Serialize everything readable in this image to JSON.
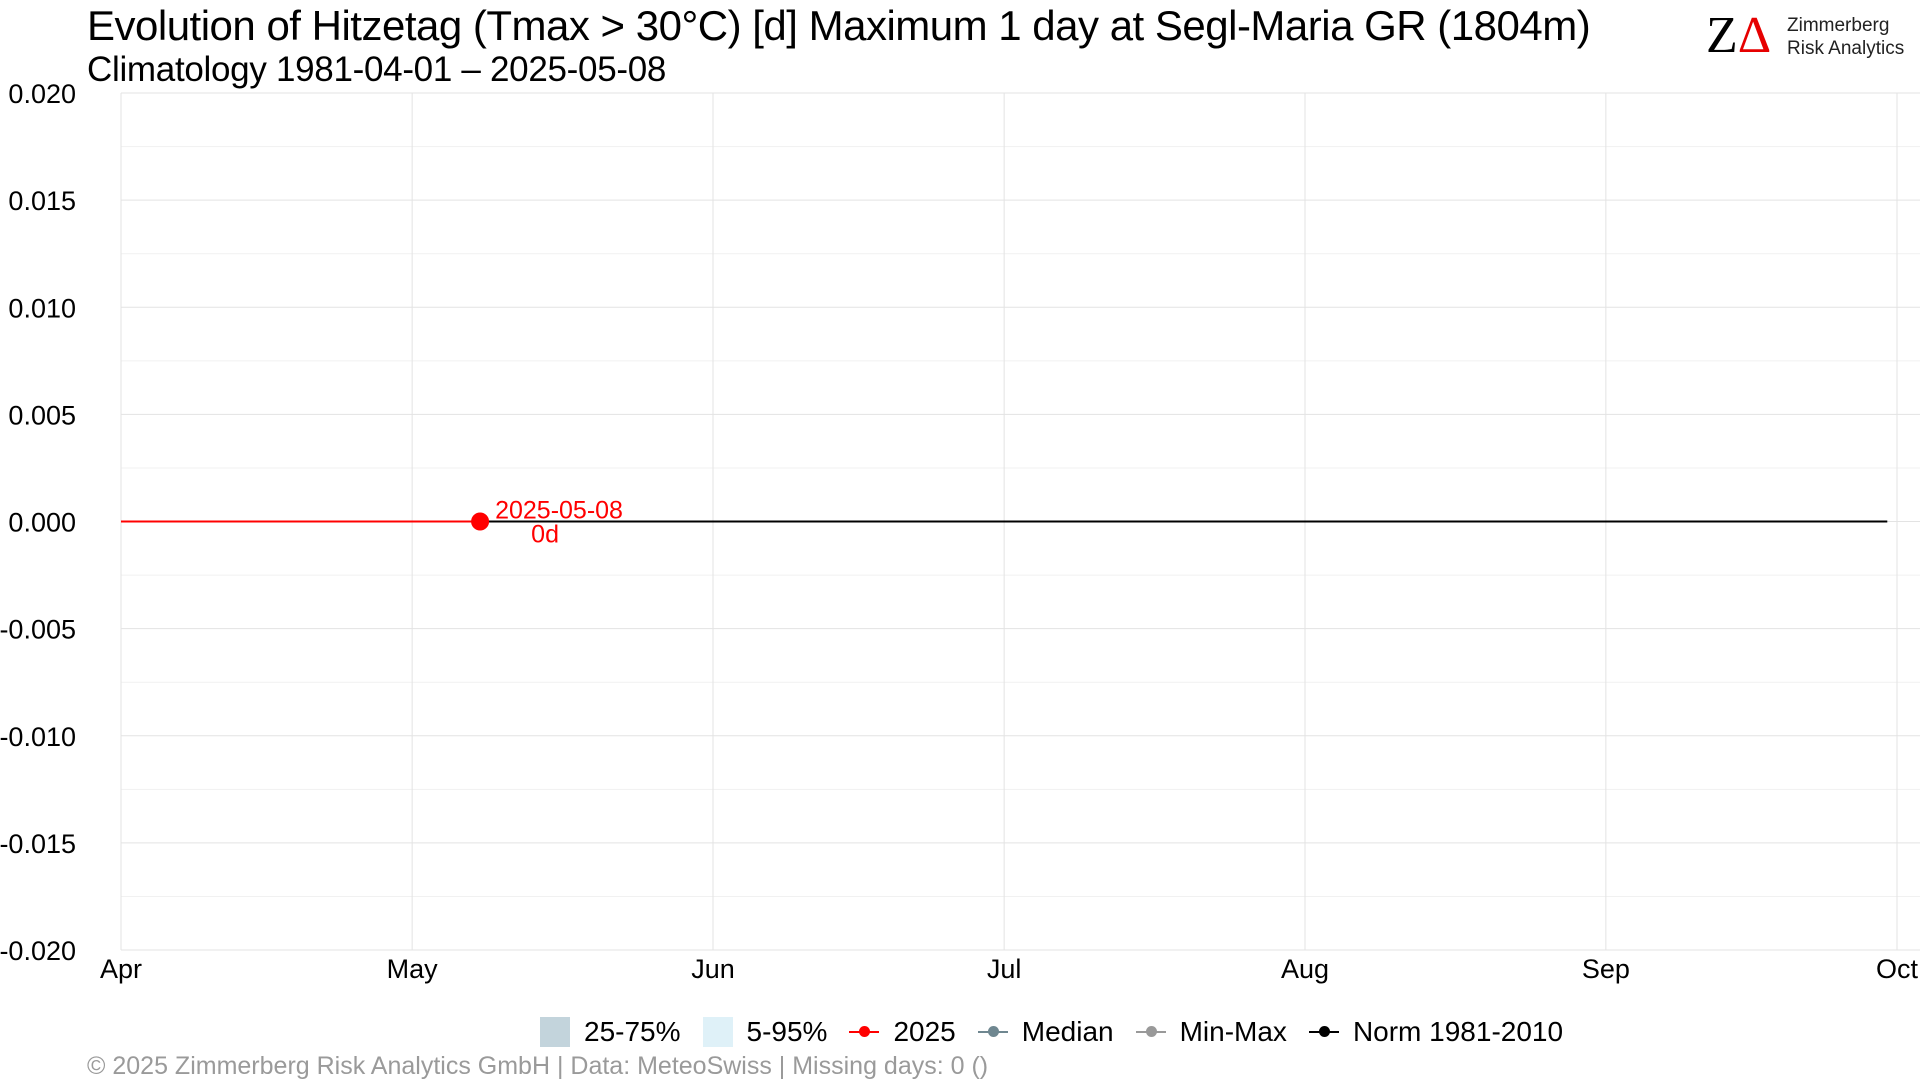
{
  "header": {
    "title": "Evolution of Hitzetag (Tmax > 30°C) [d] Maximum 1 day at Segl-Maria  GR (1804m)",
    "subtitle": "Climatology 1981-04-01 – 2025-05-08"
  },
  "logo": {
    "mark_z": "Z",
    "mark_delta": "Δ",
    "line1": "Zimmerberg",
    "line2": "Risk Analytics"
  },
  "colors": {
    "current_year": "#ff0000",
    "norm": "#000000",
    "median": "#6f8790",
    "minmax": "#999999",
    "band_25_75": "#c3d4dc",
    "band_5_95": "#dff1f8",
    "grid": "#e3e3e3"
  },
  "chart_data": {
    "type": "line",
    "title": "Evolution of Hitzetag (Tmax > 30°C) [d] Maximum 1 day at Segl-Maria  GR (1804m)",
    "subtitle": "Climatology 1981-04-01 – 2025-05-08",
    "xlabel": "",
    "ylabel": "",
    "x_range": [
      "2025-04-01",
      "2025-10-01"
    ],
    "x_ticks": [
      {
        "date": "2025-04-01",
        "label": "Apr"
      },
      {
        "date": "2025-05-01",
        "label": "May"
      },
      {
        "date": "2025-06-01",
        "label": "Jun"
      },
      {
        "date": "2025-07-01",
        "label": "Jul"
      },
      {
        "date": "2025-08-01",
        "label": "Aug"
      },
      {
        "date": "2025-09-01",
        "label": "Sep"
      },
      {
        "date": "2025-10-01",
        "label": "Oct"
      }
    ],
    "ylim": [
      -0.02,
      0.02
    ],
    "y_ticks": [
      -0.02,
      -0.015,
      -0.01,
      -0.005,
      0.0,
      0.005,
      0.01,
      0.015,
      0.02
    ],
    "y_tick_labels": [
      "-0.020",
      "-0.015",
      "-0.010",
      "-0.005",
      "0.000",
      "0.005",
      "0.010",
      "0.015",
      "0.020"
    ],
    "grid": true,
    "legend_position": "bottom",
    "series": [
      {
        "name": "Norm 1981-2010",
        "key": "norm",
        "x": [
          "2025-04-01",
          "2025-09-30"
        ],
        "y": [
          0,
          0
        ]
      },
      {
        "name": "2025",
        "key": "current_year",
        "x": [
          "2025-04-01",
          "2025-05-08"
        ],
        "y": [
          0,
          0
        ]
      }
    ],
    "annotations": [
      {
        "x": "2025-05-08",
        "y": 0,
        "label_date": "2025-05-08",
        "label_value": "0d"
      }
    ],
    "legend": [
      {
        "label": "25-75%",
        "kind": "fill",
        "color_key": "band_25_75"
      },
      {
        "label": "5-95%",
        "kind": "fill",
        "color_key": "band_5_95"
      },
      {
        "label": "2025",
        "kind": "line",
        "color_key": "current_year"
      },
      {
        "label": "Median",
        "kind": "line",
        "color_key": "median"
      },
      {
        "label": "Min-Max",
        "kind": "line",
        "color_key": "minmax"
      },
      {
        "label": "Norm 1981-2010",
        "kind": "line",
        "color_key": "norm"
      }
    ]
  },
  "footer": {
    "text": "©  2025 Zimmerberg Risk Analytics GmbH | Data: MeteoSwiss | Missing days: 0 ()"
  }
}
